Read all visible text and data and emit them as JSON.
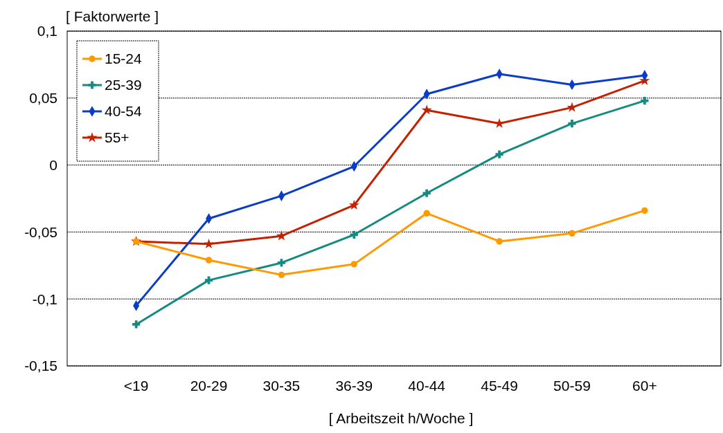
{
  "chart_data": {
    "type": "line",
    "ylabel": "[ Faktorwerte ]",
    "xlabel": "[ Arbeitszeit h/Woche ]",
    "categories": [
      "<19",
      "20-29",
      "30-35",
      "36-39",
      "40-44",
      "45-49",
      "50-59",
      "60+"
    ],
    "ylim": [
      -0.15,
      0.1
    ],
    "yticks": [
      {
        "value": -0.15,
        "label": "-0,15"
      },
      {
        "value": -0.1,
        "label": "-0,1"
      },
      {
        "value": -0.05,
        "label": "-0,05"
      },
      {
        "value": 0,
        "label": "0"
      },
      {
        "value": 0.05,
        "label": "0,05"
      },
      {
        "value": 0.1,
        "label": "0,1"
      }
    ],
    "grid": "y",
    "legend": "top left",
    "series": [
      {
        "name": "15-24",
        "color": "#ff9900",
        "marker": "circle",
        "values": [
          -0.057,
          -0.071,
          -0.082,
          -0.074,
          -0.036,
          -0.057,
          -0.051,
          -0.034
        ]
      },
      {
        "name": "25-39",
        "color": "#148a80",
        "marker": "cross",
        "values": [
          -0.119,
          -0.086,
          -0.073,
          -0.052,
          -0.021,
          0.008,
          0.031,
          0.048
        ]
      },
      {
        "name": "40-54",
        "color": "#0a3cc8",
        "marker": "diamond",
        "values": [
          -0.105,
          -0.04,
          -0.023,
          -0.001,
          0.053,
          0.068,
          0.06,
          0.067
        ]
      },
      {
        "name": "55+",
        "color": "#c42000",
        "marker": "star",
        "values": [
          -0.057,
          -0.059,
          -0.053,
          -0.03,
          0.041,
          0.031,
          0.043,
          0.063
        ]
      }
    ]
  }
}
